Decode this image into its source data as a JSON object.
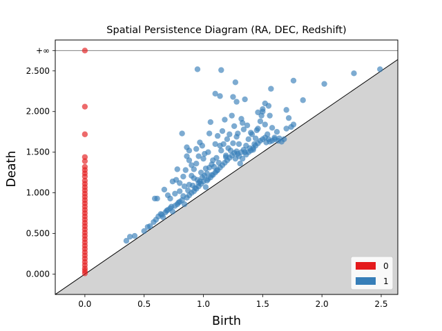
{
  "chart_data": {
    "type": "scatter",
    "title": "Spatial Persistence Diagram (RA, DEC, Redshift)",
    "xlabel": "Birth",
    "ylabel": "Death",
    "xlim": [
      -0.25,
      2.64
    ],
    "ylim": [
      -0.25,
      2.88
    ],
    "x_ticks": [
      "0.0",
      "0.5",
      "1.0",
      "1.5",
      "2.0",
      "2.5"
    ],
    "y_ticks": [
      "0.000",
      "0.500",
      "1.000",
      "1.500",
      "2.000",
      "2.500"
    ],
    "infinity_label": "+∞",
    "infinity_y": 2.75,
    "legend": {
      "placement": "bottom-right",
      "entries": [
        "0",
        "1"
      ]
    },
    "colors": {
      "0": "#e41a1c",
      "1": "#377eb8",
      "diagonal_fill": "#d3d3d3",
      "infinity_line": "#808080"
    },
    "series": [
      {
        "name": "0",
        "points": [
          [
            0,
            2.75
          ],
          [
            0,
            2.06
          ],
          [
            0,
            1.72
          ],
          [
            0,
            1.44
          ],
          [
            0,
            1.39
          ],
          [
            0,
            1.32
          ],
          [
            0,
            1.28
          ],
          [
            0,
            1.24
          ],
          [
            0,
            1.2
          ],
          [
            0,
            1.15
          ],
          [
            0,
            1.11
          ],
          [
            0,
            1.07
          ],
          [
            0,
            1.03
          ],
          [
            0,
            0.99
          ],
          [
            0,
            0.95
          ],
          [
            0,
            0.91
          ],
          [
            0,
            0.87
          ],
          [
            0,
            0.83
          ],
          [
            0,
            0.79
          ],
          [
            0,
            0.75
          ],
          [
            0,
            0.71
          ],
          [
            0,
            0.67
          ],
          [
            0,
            0.63
          ],
          [
            0,
            0.59
          ],
          [
            0,
            0.55
          ],
          [
            0,
            0.51
          ],
          [
            0,
            0.47
          ],
          [
            0,
            0.43
          ],
          [
            0,
            0.39
          ],
          [
            0,
            0.35
          ],
          [
            0,
            0.31
          ],
          [
            0,
            0.27
          ],
          [
            0,
            0.23
          ],
          [
            0,
            0.19
          ],
          [
            0,
            0.15
          ],
          [
            0,
            0.11
          ],
          [
            0,
            0.07
          ],
          [
            0,
            0.04
          ],
          [
            0,
            0.01
          ]
        ]
      },
      {
        "name": "1",
        "points": [
          [
            0.35,
            0.41
          ],
          [
            0.38,
            0.46
          ],
          [
            0.42,
            0.47
          ],
          [
            0.5,
            0.53
          ],
          [
            0.53,
            0.58
          ],
          [
            0.55,
            0.59
          ],
          [
            0.58,
            0.64
          ],
          [
            0.6,
            0.67
          ],
          [
            0.62,
            0.71
          ],
          [
            0.64,
            0.74
          ],
          [
            0.66,
            0.7
          ],
          [
            0.68,
            0.76
          ],
          [
            0.7,
            0.79
          ],
          [
            0.72,
            0.81
          ],
          [
            0.74,
            0.77
          ],
          [
            0.76,
            0.84
          ],
          [
            0.78,
            0.86
          ],
          [
            0.8,
            0.89
          ],
          [
            0.82,
            0.91
          ],
          [
            0.84,
            0.86
          ],
          [
            0.86,
            0.94
          ],
          [
            0.88,
            0.97
          ],
          [
            0.9,
            1.0
          ],
          [
            0.92,
            1.02
          ],
          [
            0.94,
            1.05
          ],
          [
            0.96,
            1.08
          ],
          [
            0.98,
            1.11
          ],
          [
            1.0,
            1.14
          ],
          [
            1.02,
            1.07
          ],
          [
            1.04,
            1.17
          ],
          [
            1.06,
            1.19
          ],
          [
            1.08,
            1.22
          ],
          [
            1.1,
            1.25
          ],
          [
            1.12,
            1.28
          ],
          [
            1.14,
            1.31
          ],
          [
            1.16,
            1.34
          ],
          [
            1.18,
            1.37
          ],
          [
            1.2,
            1.4
          ],
          [
            1.22,
            1.43
          ],
          [
            1.24,
            1.46
          ],
          [
            1.26,
            1.49
          ],
          [
            1.28,
            1.51
          ],
          [
            1.3,
            1.45
          ],
          [
            1.32,
            1.5
          ],
          [
            1.34,
            1.53
          ],
          [
            1.36,
            1.47
          ],
          [
            1.38,
            1.5
          ],
          [
            1.4,
            1.52
          ],
          [
            1.42,
            1.55
          ],
          [
            1.44,
            1.58
          ],
          [
            1.46,
            1.61
          ],
          [
            1.48,
            1.64
          ],
          [
            1.5,
            1.66
          ],
          [
            1.52,
            1.68
          ],
          [
            1.56,
            1.63
          ],
          [
            1.6,
            1.66
          ],
          [
            1.64,
            1.67
          ],
          [
            1.7,
            1.79
          ],
          [
            1.74,
            1.81
          ],
          [
            1.76,
            1.84
          ],
          [
            0.59,
            0.93
          ],
          [
            0.61,
            0.93
          ],
          [
            0.67,
            1.04
          ],
          [
            0.74,
            1.14
          ],
          [
            0.78,
            1.29
          ],
          [
            0.8,
            1.12
          ],
          [
            0.83,
            1.2
          ],
          [
            0.85,
            1.28
          ],
          [
            0.86,
            1.45
          ],
          [
            0.88,
            1.52
          ],
          [
            0.9,
            1.34
          ],
          [
            0.92,
            1.29
          ],
          [
            0.94,
            1.54
          ],
          [
            0.96,
            1.45
          ],
          [
            0.97,
            1.62
          ],
          [
            0.99,
            1.58
          ],
          [
            1.0,
            1.42
          ],
          [
            1.02,
            1.3
          ],
          [
            1.04,
            1.5
          ],
          [
            1.05,
            1.73
          ],
          [
            1.06,
            1.87
          ],
          [
            1.08,
            1.4
          ],
          [
            1.1,
            1.6
          ],
          [
            1.12,
            1.7
          ],
          [
            1.14,
            1.58
          ],
          [
            1.16,
            1.76
          ],
          [
            1.18,
            1.9
          ],
          [
            1.2,
            1.66
          ],
          [
            1.22,
            1.72
          ],
          [
            1.24,
            1.95
          ],
          [
            1.26,
            1.82
          ],
          [
            1.28,
            1.69
          ],
          [
            1.3,
            1.6
          ],
          [
            1.32,
            1.91
          ],
          [
            1.34,
            1.78
          ],
          [
            1.36,
            1.58
          ],
          [
            1.38,
            1.66
          ],
          [
            1.4,
            1.74
          ],
          [
            1.42,
            1.53
          ],
          [
            1.44,
            1.67
          ],
          [
            1.46,
            1.79
          ],
          [
            1.48,
            1.88
          ],
          [
            1.5,
            2.0
          ],
          [
            1.52,
            1.84
          ],
          [
            1.54,
            1.72
          ],
          [
            1.56,
            1.95
          ],
          [
            1.58,
            1.8
          ],
          [
            1.6,
            1.68
          ],
          [
            1.62,
            1.75
          ],
          [
            1.66,
            1.63
          ],
          [
            1.68,
            1.66
          ],
          [
            1.72,
            1.92
          ],
          [
            0.82,
            1.73
          ],
          [
            0.95,
            2.52
          ],
          [
            1.15,
            2.51
          ],
          [
            1.27,
            2.36
          ],
          [
            1.1,
            2.22
          ],
          [
            1.14,
            2.19
          ],
          [
            1.25,
            2.18
          ],
          [
            1.35,
            2.15
          ],
          [
            1.28,
            2.12
          ],
          [
            1.52,
            2.1
          ],
          [
            1.57,
            2.28
          ],
          [
            1.76,
            2.38
          ],
          [
            1.84,
            2.14
          ],
          [
            2.02,
            2.34
          ],
          [
            2.27,
            2.47
          ],
          [
            2.49,
            2.52
          ],
          [
            1.55,
            2.07
          ],
          [
            1.5,
            2.03
          ],
          [
            1.7,
            2.02
          ],
          [
            1.46,
            1.99
          ],
          [
            0.88,
            1.4
          ],
          [
            0.86,
            1.56
          ],
          [
            0.77,
            1.16
          ],
          [
            0.7,
            0.97
          ],
          [
            0.72,
            0.93
          ],
          [
            0.76,
            0.99
          ],
          [
            0.92,
            1.18
          ],
          [
            0.98,
            1.25
          ],
          [
            0.96,
            1.12
          ],
          [
            1.03,
            1.24
          ],
          [
            1.07,
            1.35
          ],
          [
            1.11,
            1.43
          ],
          [
            1.13,
            1.37
          ],
          [
            1.19,
            1.46
          ],
          [
            1.23,
            1.52
          ],
          [
            1.27,
            1.42
          ],
          [
            1.31,
            1.36
          ],
          [
            1.33,
            1.42
          ],
          [
            1.21,
            1.55
          ],
          [
            1.17,
            1.6
          ],
          [
            1.01,
            1.48
          ],
          [
            0.94,
            1.36
          ],
          [
            0.9,
            1.21
          ],
          [
            0.84,
            1.08
          ],
          [
            0.8,
            1.02
          ],
          [
            0.88,
            1.1
          ],
          [
            0.93,
            1.06
          ],
          [
            0.97,
            1.14
          ],
          [
            1.01,
            1.21
          ],
          [
            1.05,
            1.31
          ],
          [
            1.09,
            1.32
          ],
          [
            1.15,
            1.52
          ],
          [
            1.25,
            1.61
          ],
          [
            1.29,
            1.73
          ],
          [
            1.33,
            1.86
          ],
          [
            1.37,
            1.83
          ],
          [
            1.41,
            1.72
          ],
          [
            1.45,
            1.77
          ],
          [
            1.49,
            1.95
          ],
          [
            1.53,
            1.62
          ],
          [
            1.58,
            1.64
          ],
          [
            1.63,
            1.64
          ],
          [
            1.55,
            1.66
          ],
          [
            1.43,
            1.6
          ],
          [
            1.39,
            1.55
          ],
          [
            1.35,
            1.5
          ],
          [
            1.29,
            1.48
          ],
          [
            1.19,
            1.44
          ],
          [
            0.65,
            0.73
          ],
          [
            0.69,
            0.78
          ],
          [
            0.73,
            0.83
          ],
          [
            0.79,
            0.88
          ],
          [
            0.83,
            0.96
          ],
          [
            0.87,
            1.03
          ],
          [
            0.91,
            1.09
          ],
          [
            0.95,
            1.16
          ],
          [
            0.99,
            1.19
          ],
          [
            1.03,
            1.15
          ],
          [
            1.07,
            1.22
          ],
          [
            1.11,
            1.27
          ]
        ]
      }
    ]
  }
}
